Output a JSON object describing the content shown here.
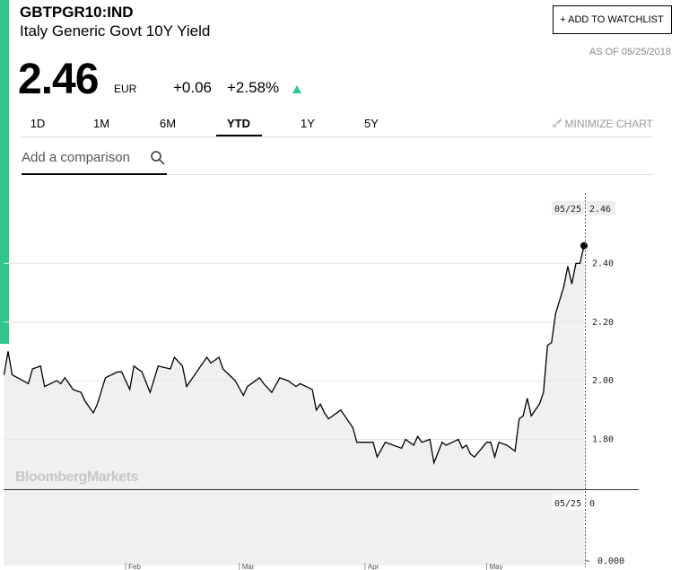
{
  "header": {
    "ticker": "GBTPGR10:IND",
    "name": "Italy Generic Govt 10Y Yield",
    "watchlist_button": "+ ADD TO WATCHLIST",
    "as_of": "AS OF 05/25/2018",
    "price": "2.46",
    "currency": "EUR",
    "change": "+0.06",
    "change_pct": "+2.58%"
  },
  "tabs": [
    "1D",
    "1M",
    "6M",
    "YTD",
    "1Y",
    "5Y"
  ],
  "minimize": "MINIMIZE CHART",
  "comparison_placeholder": "Add a comparison",
  "chart_data": {
    "type": "line",
    "watermark": "BloombergMarkets",
    "color": "#000000",
    "x": [
      2,
      3,
      4,
      8,
      9,
      11,
      12,
      15,
      16,
      17,
      19,
      21,
      22,
      24,
      25,
      27,
      30,
      31,
      33,
      34,
      36,
      38,
      40,
      43,
      44,
      46,
      47,
      50,
      52,
      53,
      55,
      56,
      59,
      61,
      62,
      65,
      66,
      68,
      70,
      72,
      74,
      75,
      78,
      79,
      80,
      81,
      82,
      85,
      86,
      88,
      89,
      93,
      94,
      96,
      98,
      100,
      101,
      103,
      104,
      105,
      107,
      108,
      110,
      111,
      114,
      115,
      116,
      117,
      118,
      121,
      122,
      123,
      124,
      126,
      128,
      129,
      130,
      131,
      132,
      134,
      135,
      136,
      137,
      138,
      140,
      141,
      142,
      143,
      144,
      145
    ],
    "values": [
      2.02,
      2.1,
      2.02,
      1.99,
      2.04,
      2.05,
      1.98,
      2.0,
      1.99,
      2.01,
      1.97,
      1.96,
      1.93,
      1.89,
      1.92,
      2.01,
      2.03,
      2.03,
      1.97,
      2.05,
      2.03,
      1.96,
      2.05,
      2.04,
      2.08,
      2.05,
      1.98,
      2.04,
      2.08,
      2.06,
      2.08,
      2.04,
      2.0,
      1.95,
      1.98,
      2.01,
      1.99,
      1.96,
      2.01,
      2.0,
      1.98,
      1.99,
      1.97,
      1.9,
      1.92,
      1.89,
      1.87,
      1.9,
      1.88,
      1.84,
      1.79,
      1.79,
      1.74,
      1.79,
      1.78,
      1.77,
      1.8,
      1.78,
      1.81,
      1.79,
      1.8,
      1.72,
      1.79,
      1.78,
      1.8,
      1.77,
      1.78,
      1.75,
      1.74,
      1.79,
      1.79,
      1.74,
      1.79,
      1.78,
      1.76,
      1.87,
      1.88,
      1.94,
      1.88,
      1.92,
      1.96,
      2.12,
      2.13,
      2.23,
      2.32,
      2.39,
      2.33,
      2.4,
      2.4,
      2.46
    ],
    "xlim": [
      1,
      145
    ],
    "xticks": [
      {
        "value": 32,
        "label": "Feb"
      },
      {
        "value": 60,
        "label": "Mar"
      },
      {
        "value": 91,
        "label": "Apr"
      },
      {
        "value": 121,
        "label": "May"
      }
    ],
    "ylim": [
      1.63,
      2.64
    ],
    "yticks": [
      {
        "value": 1.8,
        "label": "1.80"
      },
      {
        "value": 2.0,
        "label": "2.00"
      },
      {
        "value": 2.2,
        "label": "2.20"
      },
      {
        "value": 2.4,
        "label": "2.40"
      }
    ],
    "grid": true,
    "last_label": {
      "date": "05/25",
      "value": 2.46
    },
    "lower_panel": {
      "date": "05/25",
      "value": 0,
      "yticks": [
        {
          "value": 0,
          "label": "0.000"
        }
      ]
    }
  }
}
